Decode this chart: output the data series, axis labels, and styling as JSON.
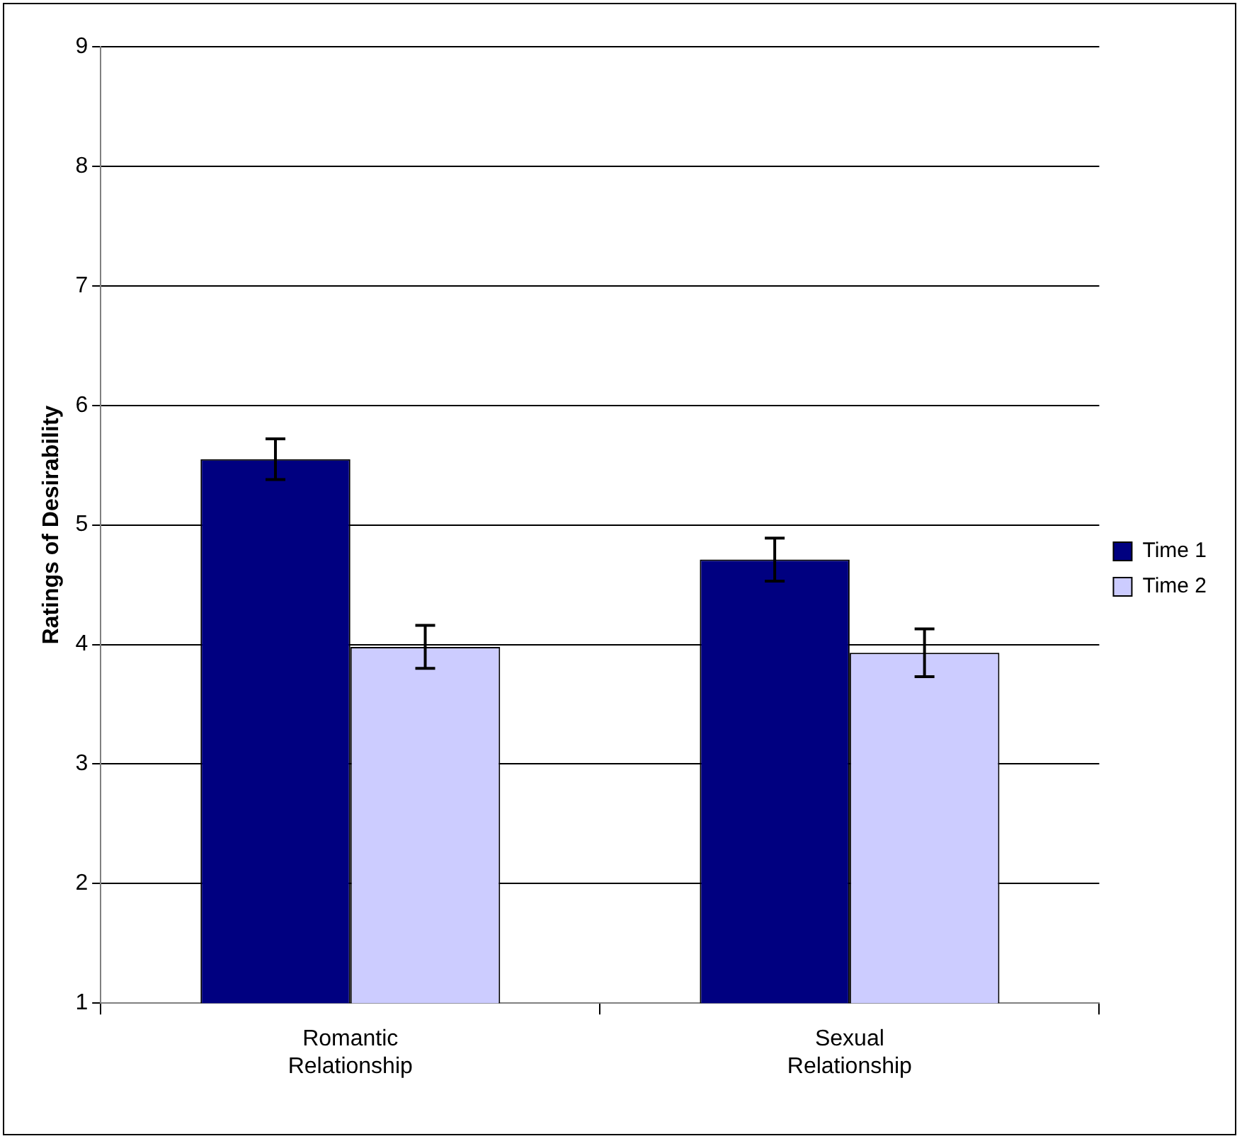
{
  "chart_data": {
    "type": "bar",
    "ylabel": "Ratings of Desirability",
    "categories": [
      "Romantic Relationship",
      "Sexual Relationship"
    ],
    "series": [
      {
        "name": "Time 1",
        "color": "#000080",
        "values": [
          5.55,
          4.71
        ],
        "errors": [
          0.17,
          0.18
        ]
      },
      {
        "name": "Time 2",
        "color": "#ccccff",
        "values": [
          3.98,
          3.93
        ],
        "errors": [
          0.18,
          0.2
        ]
      }
    ],
    "ylim": [
      1,
      9
    ],
    "yticks": [
      1,
      2,
      3,
      4,
      5,
      6,
      7,
      8,
      9
    ],
    "grid": "y",
    "legend": "right"
  }
}
